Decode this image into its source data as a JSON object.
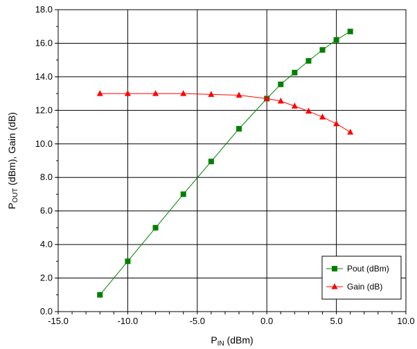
{
  "chart_data": {
    "type": "line",
    "x_label": {
      "main": "P",
      "sub": "IN",
      "suffix": " (dBm)"
    },
    "y_label": {
      "main": "P",
      "sub": "OUT",
      "suffix": " (dBm), Gain (dB)"
    },
    "xlim": [
      -15,
      10
    ],
    "ylim": [
      0,
      18
    ],
    "x_ticks": [
      -15,
      -10,
      -5,
      0,
      5,
      10
    ],
    "x_tick_labels": [
      "-15.0",
      "-10.0",
      "-5.0",
      "0.0",
      "5.0",
      "10.0"
    ],
    "y_ticks": [
      0,
      2,
      4,
      6,
      8,
      10,
      12,
      14,
      16,
      18
    ],
    "y_tick_labels": [
      "0.0",
      "2.0",
      "4.0",
      "6.0",
      "8.0",
      "10.0",
      "12.0",
      "14.0",
      "16.0",
      "18.0"
    ],
    "grid": true,
    "legend_position": "bottom-right",
    "series": [
      {
        "name": "Pout (dBm)",
        "color": "#008000",
        "marker": "square",
        "x": [
          -12,
          -10,
          -8,
          -6,
          -4,
          -2,
          0,
          1,
          2,
          3,
          4,
          5,
          6
        ],
        "y": [
          1.0,
          3.0,
          5.0,
          7.0,
          8.95,
          10.9,
          12.7,
          13.55,
          14.25,
          14.95,
          15.6,
          16.2,
          16.7
        ]
      },
      {
        "name": "Gain (dB)",
        "color": "#ff0000",
        "marker": "triangle",
        "x": [
          -12,
          -10,
          -8,
          -6,
          -4,
          -2,
          0,
          1,
          2,
          3,
          4,
          5,
          6
        ],
        "y": [
          13.0,
          13.0,
          13.0,
          13.0,
          12.95,
          12.9,
          12.7,
          12.55,
          12.25,
          11.95,
          11.6,
          11.2,
          10.7
        ]
      }
    ]
  }
}
